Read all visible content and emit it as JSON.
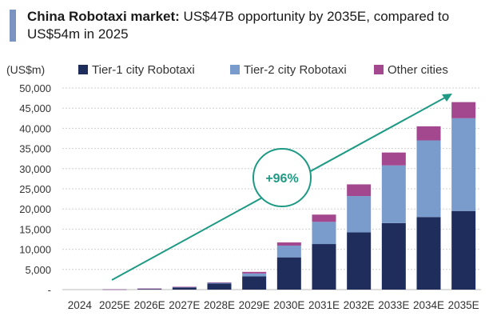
{
  "header": {
    "title_bold": "China Robotaxi market:",
    "title_rest": " US$47B opportunity by 2035E, compared to US$54m in 2025"
  },
  "chart_data": {
    "type": "bar",
    "stacked": true,
    "ylabel": "(US$m)",
    "ylim": [
      0,
      50000
    ],
    "yticks": [
      0,
      5000,
      10000,
      15000,
      20000,
      25000,
      30000,
      35000,
      40000,
      45000,
      50000
    ],
    "ytick_labels": [
      "-",
      "5,000",
      "10,000",
      "15,000",
      "20,000",
      "25,000",
      "30,000",
      "35,000",
      "40,000",
      "45,000",
      "50,000"
    ],
    "categories": [
      "2024",
      "2025E",
      "2026E",
      "2027E",
      "2028E",
      "2029E",
      "2030E",
      "2031E",
      "2032E",
      "2033E",
      "2034E",
      "2035E"
    ],
    "series": [
      {
        "name": "Tier-1 city Robotaxi",
        "color": "#1f2d5c",
        "values": [
          0,
          40,
          200,
          500,
          1500,
          3300,
          8000,
          11300,
          14200,
          16500,
          18000,
          19500
        ]
      },
      {
        "name": "Tier-2 city Robotaxi",
        "color": "#7a9ccd",
        "values": [
          0,
          10,
          50,
          150,
          200,
          700,
          2900,
          5500,
          9000,
          14300,
          19000,
          23000
        ]
      },
      {
        "name": "Other cities",
        "color": "#a3488e",
        "values": [
          0,
          4,
          20,
          50,
          100,
          400,
          800,
          1800,
          2900,
          3200,
          3500,
          4000
        ]
      }
    ],
    "annotation": {
      "label": "+96%",
      "color": "#1e9a84"
    },
    "grid": true,
    "legend": "top"
  }
}
